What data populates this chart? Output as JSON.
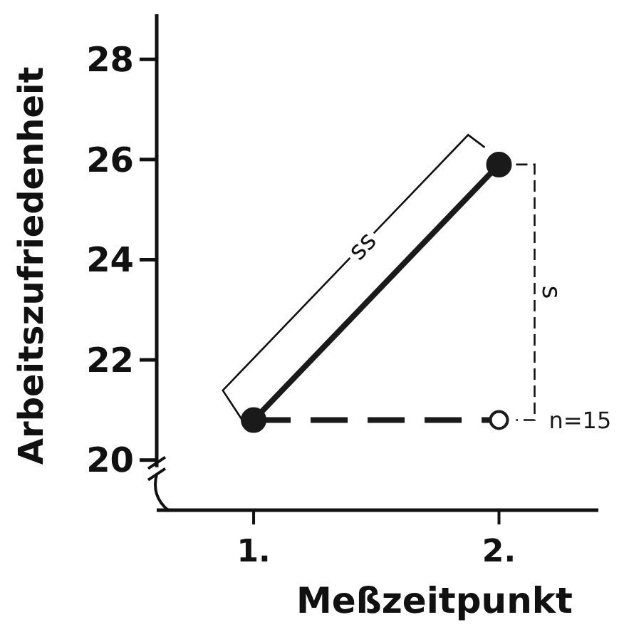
{
  "chart_data": {
    "type": "line",
    "ylabel": "Arbeitszufriedenheit",
    "xlabel": "Meßzeitpunkt",
    "categories": [
      "1.",
      "2."
    ],
    "ylim": [
      19,
      28.9
    ],
    "yticks": [
      20,
      22,
      24,
      26,
      28
    ],
    "grid": false,
    "legend": false,
    "marker": "circle",
    "series": [
      {
        "color": "#1a1a1a",
        "line_style": "solid",
        "values": [
          20.8,
          25.9
        ]
      },
      {
        "name": "n=15",
        "color": "#1a1a1a",
        "line_style": "dashed",
        "values": [
          20.8,
          20.8
        ]
      }
    ],
    "annotations": [
      "ss",
      "s"
    ]
  }
}
